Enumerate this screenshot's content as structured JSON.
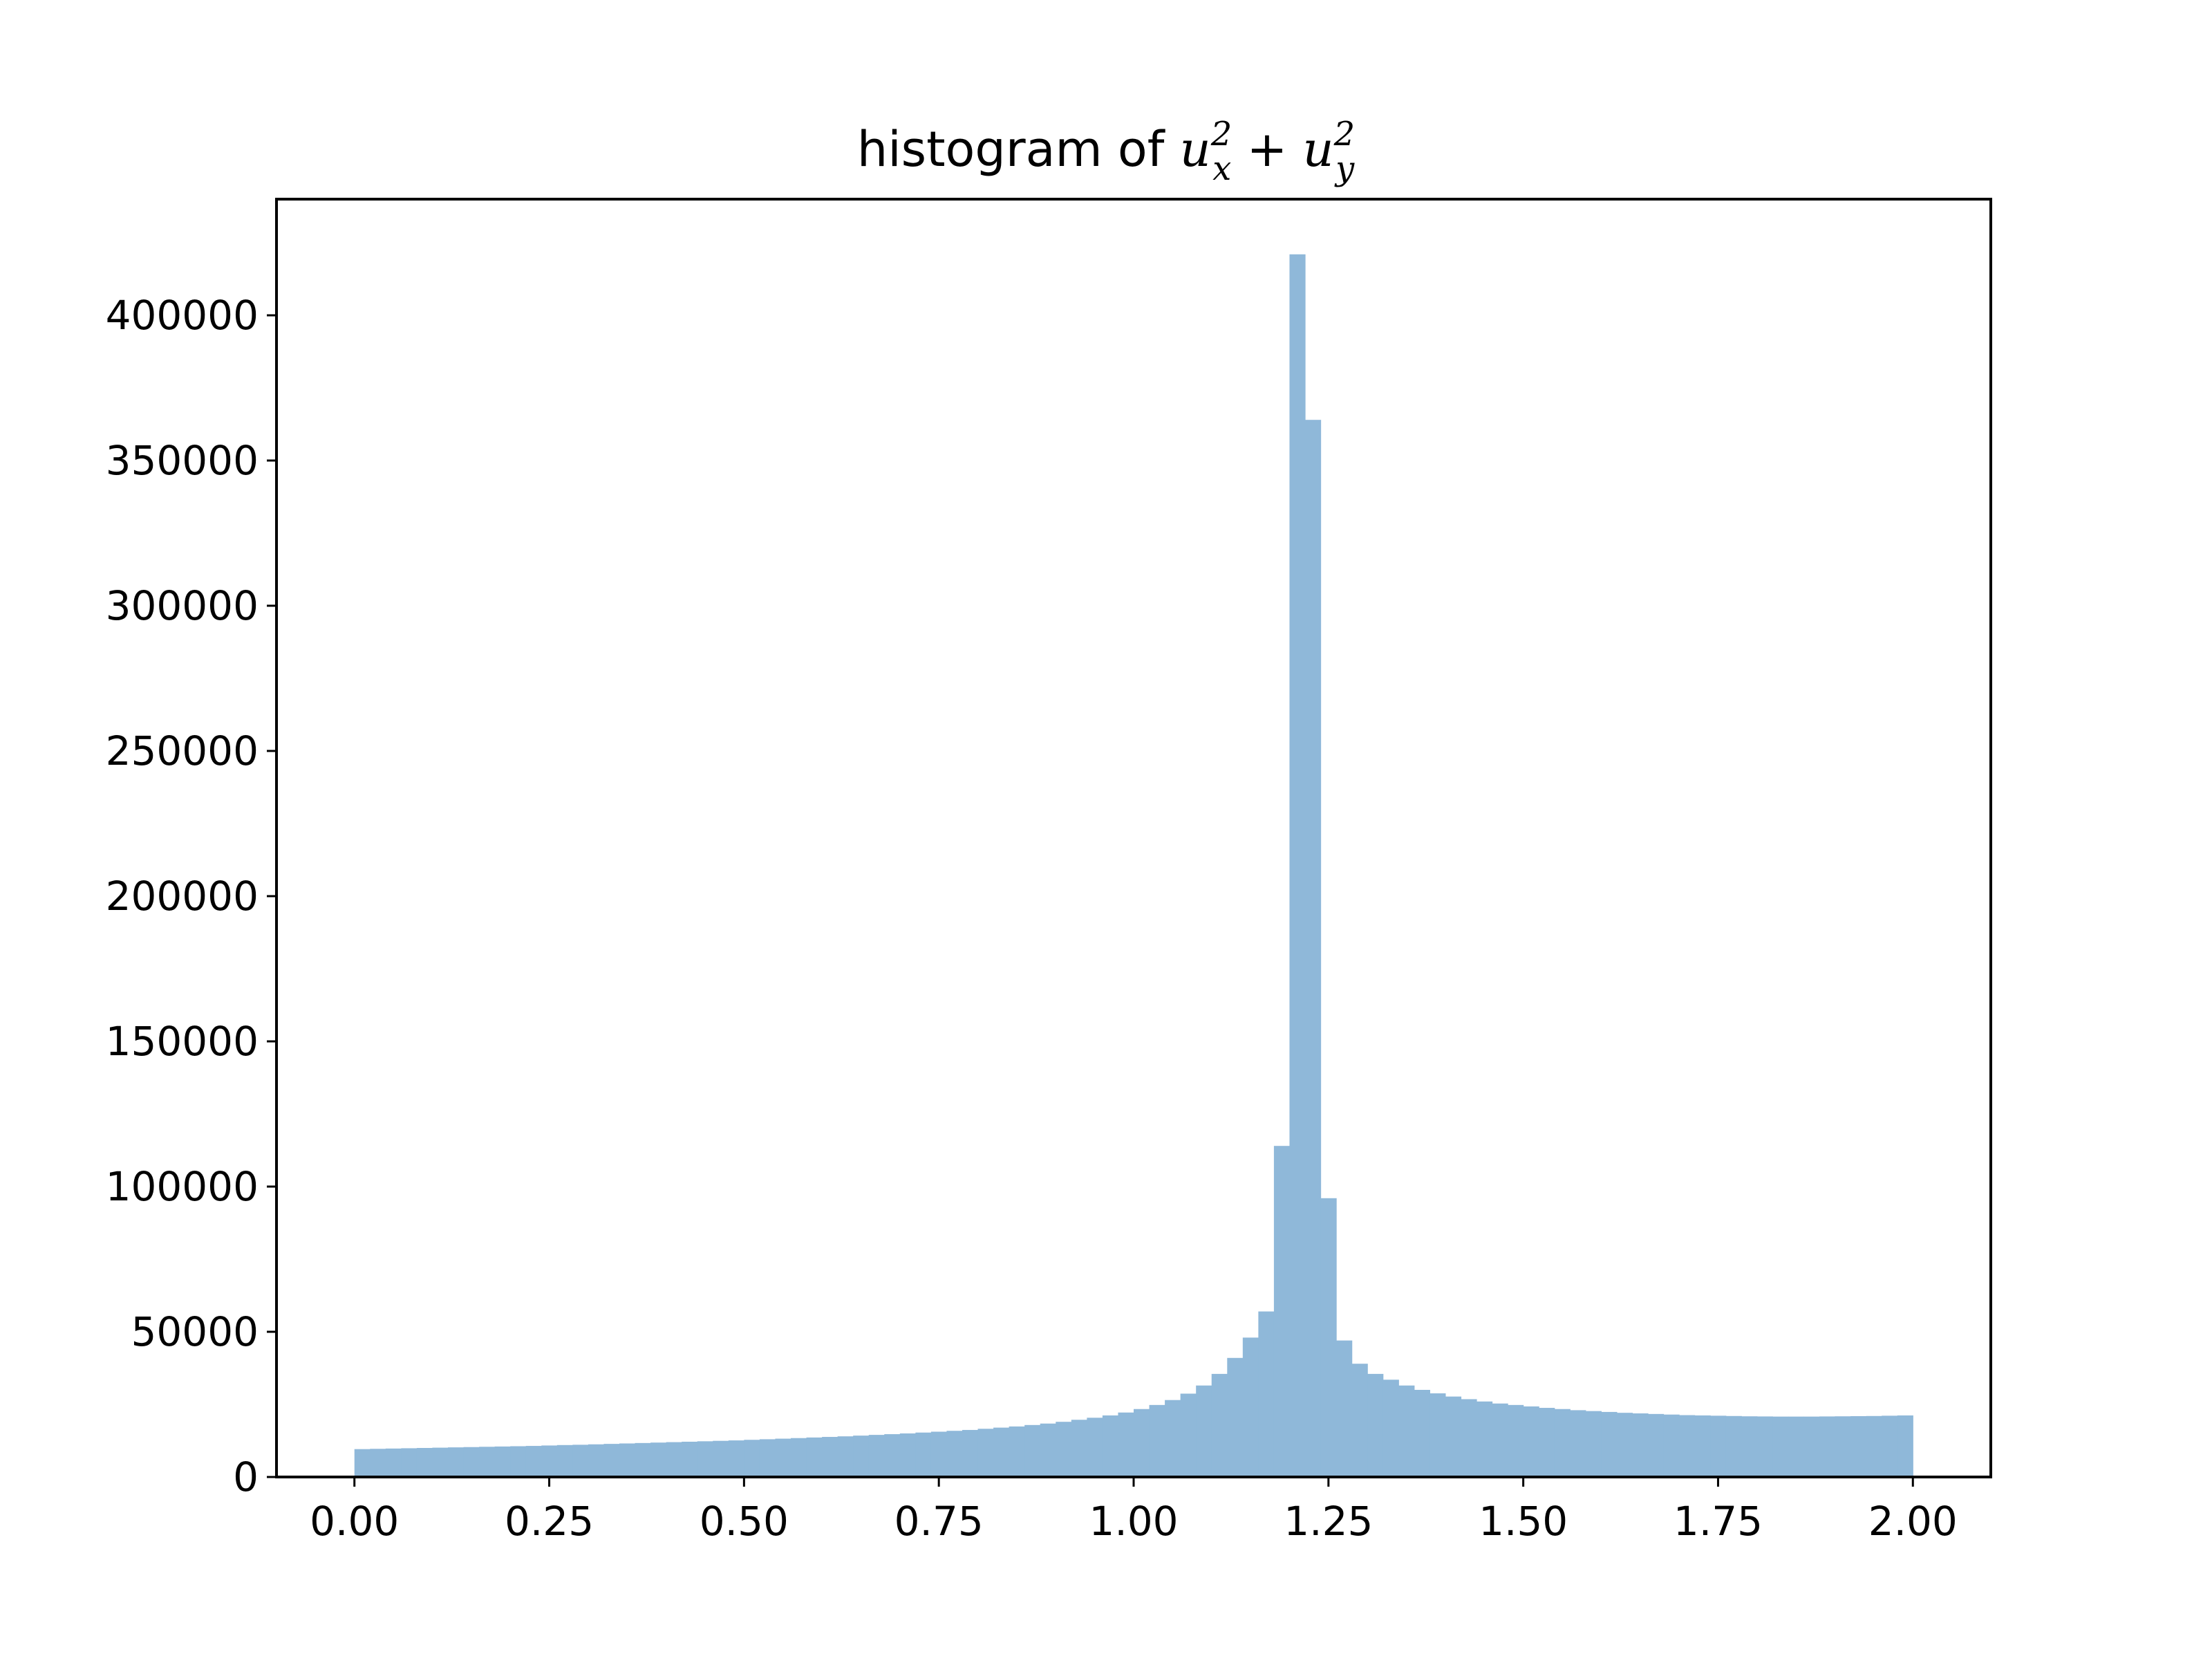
{
  "chart_data": {
    "type": "bar",
    "title": {
      "prefix": "histogram of ",
      "term1_base": "u",
      "term1_sup": "2",
      "term1_sub": "x",
      "operator": " + ",
      "term2_base": "u",
      "term2_sup": "2",
      "term2_sub": "y"
    },
    "xlabel": "",
    "ylabel": "",
    "xlim": [
      -0.1,
      2.1
    ],
    "ylim": [
      0,
      440000
    ],
    "grid": false,
    "bar_color": "#8fb8d9",
    "bin_range": [
      0,
      2
    ],
    "bins": 100,
    "x_ticks": [
      0.0,
      0.25,
      0.5,
      0.75,
      1.0,
      1.25,
      1.5,
      1.75,
      2.0
    ],
    "x_tick_labels": [
      "0.00",
      "0.25",
      "0.50",
      "0.75",
      "1.00",
      "1.25",
      "1.50",
      "1.75",
      "2.00"
    ],
    "y_ticks": [
      0,
      50000,
      100000,
      150000,
      200000,
      250000,
      300000,
      350000,
      400000
    ],
    "y_tick_labels": [
      "0",
      "50000",
      "100000",
      "150000",
      "200000",
      "250000",
      "300000",
      "350000",
      "400000"
    ],
    "values": [
      9600,
      9700,
      9800,
      9900,
      10000,
      10100,
      10200,
      10300,
      10400,
      10500,
      10600,
      10700,
      10850,
      11000,
      11100,
      11250,
      11400,
      11550,
      11700,
      11850,
      12000,
      12150,
      12300,
      12450,
      12600,
      12800,
      13000,
      13200,
      13400,
      13600,
      13800,
      14000,
      14250,
      14500,
      14750,
      15000,
      15300,
      15600,
      15900,
      16200,
      16600,
      17000,
      17400,
      17900,
      18400,
      19000,
      19700,
      20400,
      21200,
      22200,
      23400,
      24800,
      26500,
      28700,
      31500,
      35500,
      41000,
      48000,
      57000,
      114000,
      421000,
      364000,
      96000,
      47000,
      39000,
      35500,
      33500,
      31500,
      30000,
      28800,
      27700,
      26800,
      26000,
      25300,
      24800,
      24300,
      23800,
      23400,
      23000,
      22700,
      22400,
      22100,
      21900,
      21700,
      21500,
      21300,
      21200,
      21100,
      21000,
      20900,
      20850,
      20800,
      20800,
      20800,
      20850,
      20900,
      20950,
      21000,
      21100,
      21200
    ]
  }
}
